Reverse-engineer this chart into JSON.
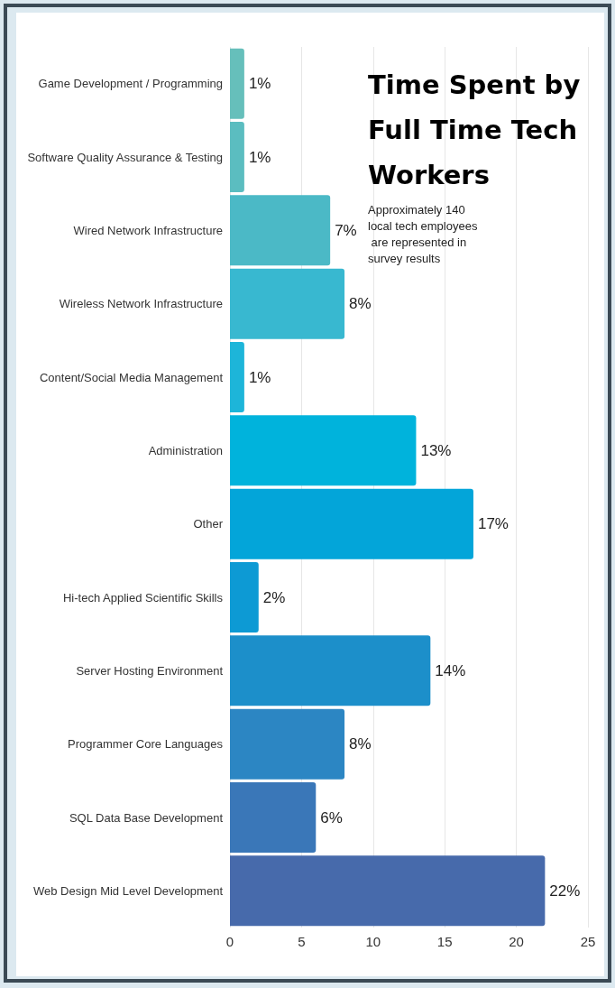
{
  "chart_data": {
    "type": "bar",
    "orientation": "horizontal",
    "title": "Time Spent by Full Time Tech Workers",
    "subtitle": "Approximately 140 local tech employees are represented in survey results",
    "categories": [
      "Game Development / Programming",
      "Software Quality Assurance & Testing",
      "Wired Network Infrastructure",
      "Wireless Network Infrastructure",
      "Content/Social Media Management",
      "Administration",
      "Other",
      "Hi-tech Applied Scientific Skills",
      "Server Hosting Environment",
      "Programmer Core Languages",
      "SQL Data Base Development",
      "Web Design Mid Level Development"
    ],
    "values": [
      1,
      1,
      7,
      8,
      1,
      13,
      17,
      2,
      14,
      8,
      6,
      22
    ],
    "value_labels": [
      "1%",
      "1%",
      "7%",
      "8%",
      "1%",
      "13%",
      "17%",
      "2%",
      "14%",
      "8%",
      "6%",
      "22%"
    ],
    "colors": [
      "#66bfbb",
      "#5bbdc0",
      "#4bb9c6",
      "#38b8d0",
      "#1db5d9",
      "#00b3dc",
      "#03a5d9",
      "#0d9ad4",
      "#1c8fca",
      "#2c86c3",
      "#3a77b8",
      "#476aab"
    ],
    "xlim": [
      0,
      25
    ],
    "xticks": [
      0,
      5,
      10,
      15,
      20,
      25
    ],
    "grid": "x"
  }
}
